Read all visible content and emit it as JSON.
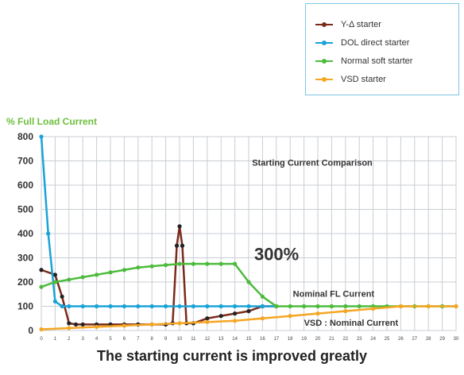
{
  "chart_data": {
    "type": "line",
    "title": "Starting Current Comparison",
    "ylabel": "% Full Load Current",
    "caption": "The starting current is improved greatly",
    "xlim": [
      0,
      30
    ],
    "ylim": [
      0,
      800
    ],
    "xticks": [
      0,
      1,
      2,
      3,
      4,
      5,
      6,
      7,
      8,
      9,
      10,
      11,
      12,
      13,
      14,
      15,
      16,
      17,
      18,
      19,
      20,
      21,
      22,
      23,
      24,
      25,
      26,
      27,
      28,
      29,
      30
    ],
    "yticks": [
      0,
      100,
      200,
      300,
      400,
      500,
      600,
      700,
      800
    ],
    "grid": true,
    "legend_position": "top-right",
    "series": [
      {
        "name": "Y-Δ starter",
        "color": "#7a2a1a",
        "x": [
          0,
          1,
          1.5,
          2,
          2.5,
          3,
          4,
          5,
          6,
          7,
          8,
          9,
          9.5,
          9.8,
          10,
          10.2,
          10.5,
          11,
          12,
          13,
          14,
          15,
          16,
          17
        ],
        "y": [
          250,
          230,
          140,
          30,
          25,
          25,
          25,
          25,
          25,
          25,
          25,
          25,
          30,
          350,
          430,
          350,
          30,
          30,
          50,
          60,
          70,
          80,
          100,
          100
        ]
      },
      {
        "name": "DOL direct starter",
        "color": "#1aa3d9",
        "x": [
          0,
          0.5,
          1,
          1.5,
          2,
          3,
          4,
          5,
          6,
          7,
          8,
          9,
          10,
          11,
          12,
          13,
          14,
          15,
          16,
          17
        ],
        "y": [
          800,
          400,
          120,
          100,
          100,
          100,
          100,
          100,
          100,
          100,
          100,
          100,
          100,
          100,
          100,
          100,
          100,
          100,
          100,
          100
        ]
      },
      {
        "name": "Normal soft starter",
        "color": "#4cbb3c",
        "x": [
          0,
          1,
          2,
          3,
          4,
          5,
          6,
          7,
          8,
          9,
          10,
          11,
          12,
          13,
          14,
          15,
          16,
          17,
          18,
          19,
          20,
          21,
          22,
          23,
          24,
          25,
          26,
          27,
          28,
          29,
          30
        ],
        "y": [
          180,
          200,
          210,
          220,
          230,
          240,
          250,
          260,
          265,
          270,
          275,
          275,
          275,
          275,
          275,
          200,
          140,
          100,
          100,
          100,
          100,
          100,
          100,
          100,
          100,
          100,
          100,
          100,
          100,
          100,
          100
        ]
      },
      {
        "name": "VSD starter",
        "color": "#f5a623",
        "x": [
          0,
          2,
          4,
          6,
          8,
          10,
          12,
          14,
          16,
          18,
          20,
          22,
          24,
          26,
          28,
          30
        ],
        "y": [
          5,
          10,
          15,
          20,
          25,
          30,
          35,
          40,
          50,
          60,
          70,
          80,
          90,
          100,
          100,
          100
        ]
      }
    ],
    "annotations": [
      {
        "text": "300%",
        "x": 15.4,
        "y": 290
      },
      {
        "text": "Nominal FL Current",
        "x": 18.2,
        "y": 140
      },
      {
        "text": "VSD : Nominal Current",
        "x": 19.0,
        "y": 20
      }
    ]
  },
  "legend": [
    {
      "label": "Y-Δ starter",
      "color": "#7a2a1a"
    },
    {
      "label": "DOL direct starter",
      "color": "#1aa3d9"
    },
    {
      "label": "Normal soft starter",
      "color": "#4cbb3c"
    },
    {
      "label": "VSD starter",
      "color": "#f5a623"
    }
  ]
}
